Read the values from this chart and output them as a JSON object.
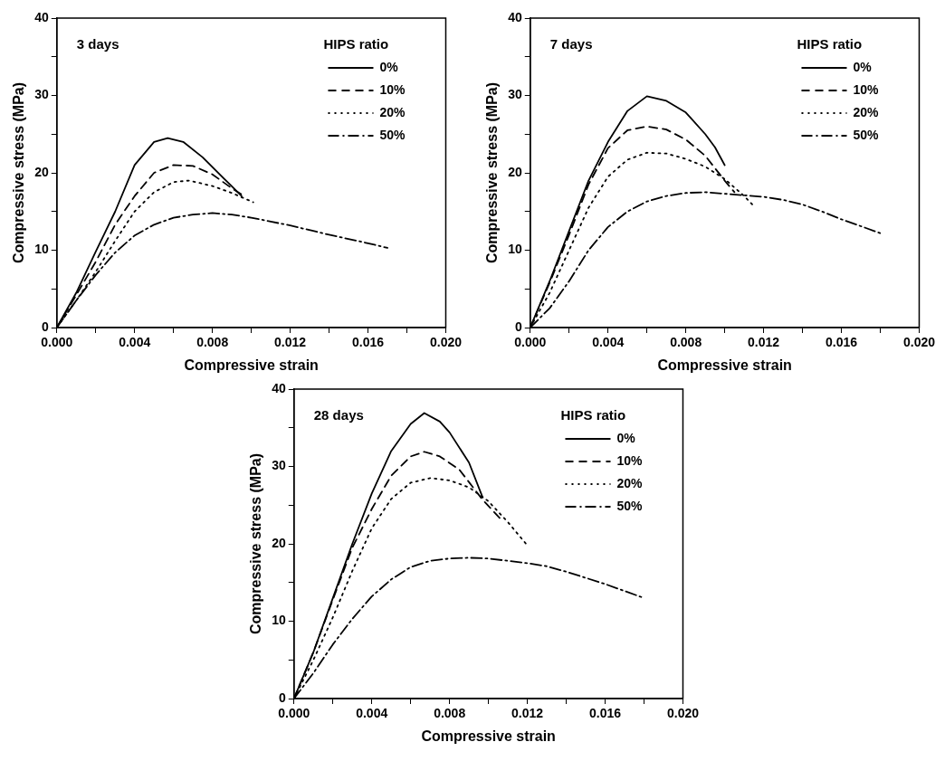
{
  "chart_data": [
    {
      "type": "line",
      "xlabel": "Compressive strain",
      "ylabel": "Compressive stress (MPa)",
      "legend_title": "HIPS ratio",
      "legend": "top right",
      "grid": false,
      "annotations": [
        "3 days"
      ],
      "xlim": [
        0,
        0.02
      ],
      "ylim": [
        0,
        40
      ],
      "xticks": [
        {
          "value": 0,
          "label": "0.000"
        },
        {
          "value": 0.002,
          "label": null
        },
        {
          "value": 0.004,
          "label": "0.004"
        },
        {
          "value": 0.006,
          "label": null
        },
        {
          "value": 0.008,
          "label": "0.008"
        },
        {
          "value": 0.01,
          "label": null
        },
        {
          "value": 0.012,
          "label": "0.012"
        },
        {
          "value": 0.014,
          "label": null
        },
        {
          "value": 0.016,
          "label": "0.016"
        },
        {
          "value": 0.018,
          "label": null
        },
        {
          "value": 0.02,
          "label": "0.020"
        }
      ],
      "yticks": [
        0,
        {
          "value": 5,
          "label": null
        },
        10,
        {
          "value": 15,
          "label": null
        },
        20,
        {
          "value": 25,
          "label": null
        },
        30,
        {
          "value": 35,
          "label": null
        },
        40
      ],
      "series": [
        {
          "name": "0%",
          "color": "#000000",
          "line_style": "solid",
          "x": [
            0,
            0.001,
            0.002,
            0.003,
            0.004,
            0.005,
            0.0057,
            0.0065,
            0.0075,
            0.0085,
            0.0095
          ],
          "values": [
            0,
            4.5,
            9.8,
            15,
            21,
            24,
            24.5,
            24,
            22,
            19.5,
            17
          ]
        },
        {
          "name": "10%",
          "color": "#000000",
          "line_style": "dashed",
          "x": [
            0,
            0.001,
            0.002,
            0.003,
            0.004,
            0.005,
            0.006,
            0.007,
            0.008,
            0.009,
            0.0097
          ],
          "values": [
            0,
            4.2,
            8.5,
            13.3,
            17,
            20,
            21,
            20.9,
            19.8,
            18,
            16.9
          ]
        },
        {
          "name": "20%",
          "color": "#000000",
          "line_style": "dotted",
          "x": [
            0,
            0.001,
            0.002,
            0.003,
            0.004,
            0.005,
            0.006,
            0.0068,
            0.008,
            0.009,
            0.0101
          ],
          "values": [
            0,
            3.5,
            7.2,
            11.2,
            15,
            17.5,
            18.8,
            19,
            18.3,
            17.4,
            16.2
          ]
        },
        {
          "name": "50%",
          "color": "#000000",
          "line_style": "dashdot",
          "x": [
            0,
            0.001,
            0.002,
            0.003,
            0.004,
            0.005,
            0.006,
            0.007,
            0.008,
            0.009,
            0.01,
            0.011,
            0.012,
            0.014,
            0.016,
            0.017
          ],
          "values": [
            0,
            3.5,
            6.8,
            9.7,
            11.9,
            13.3,
            14.2,
            14.6,
            14.8,
            14.6,
            14.2,
            13.7,
            13.2,
            12,
            10.9,
            10.3
          ]
        }
      ]
    },
    {
      "type": "line",
      "xlabel": "Compressive strain",
      "ylabel": "Compressive stress (MPa)",
      "legend_title": "HIPS ratio",
      "legend": "top right",
      "grid": false,
      "annotations": [
        "7 days"
      ],
      "xlim": [
        0,
        0.02
      ],
      "ylim": [
        0,
        40
      ],
      "xticks": [
        {
          "value": 0,
          "label": "0.000"
        },
        {
          "value": 0.002,
          "label": null
        },
        {
          "value": 0.004,
          "label": "0.004"
        },
        {
          "value": 0.006,
          "label": null
        },
        {
          "value": 0.008,
          "label": "0.008"
        },
        {
          "value": 0.01,
          "label": null
        },
        {
          "value": 0.012,
          "label": "0.012"
        },
        {
          "value": 0.014,
          "label": null
        },
        {
          "value": 0.016,
          "label": "0.016"
        },
        {
          "value": 0.018,
          "label": null
        },
        {
          "value": 0.02,
          "label": "0.020"
        }
      ],
      "yticks": [
        0,
        {
          "value": 5,
          "label": null
        },
        10,
        {
          "value": 15,
          "label": null
        },
        20,
        {
          "value": 25,
          "label": null
        },
        30,
        {
          "value": 35,
          "label": null
        },
        40
      ],
      "series": [
        {
          "name": "0%",
          "color": "#000000",
          "line_style": "solid",
          "x": [
            0,
            0.001,
            0.002,
            0.003,
            0.004,
            0.005,
            0.006,
            0.007,
            0.008,
            0.009,
            0.0095,
            0.01
          ],
          "values": [
            0,
            6,
            12.5,
            19,
            24,
            28,
            29.9,
            29.3,
            27.8,
            25,
            23.3,
            21
          ]
        },
        {
          "name": "10%",
          "color": "#000000",
          "line_style": "dashed",
          "x": [
            0,
            0.001,
            0.002,
            0.003,
            0.004,
            0.005,
            0.006,
            0.007,
            0.008,
            0.009,
            0.01,
            0.0105
          ],
          "values": [
            0,
            5.8,
            12,
            18.5,
            23.2,
            25.5,
            26,
            25.6,
            24.3,
            22.2,
            19,
            17.5
          ]
        },
        {
          "name": "20%",
          "color": "#000000",
          "line_style": "dotted",
          "x": [
            0,
            0.001,
            0.002,
            0.003,
            0.004,
            0.005,
            0.006,
            0.007,
            0.008,
            0.009,
            0.01,
            0.011,
            0.0115
          ],
          "values": [
            0,
            4.5,
            10,
            15.5,
            19.5,
            21.7,
            22.6,
            22.5,
            21.8,
            20.8,
            19.2,
            17,
            15.7
          ]
        },
        {
          "name": "50%",
          "color": "#000000",
          "line_style": "dashdot",
          "x": [
            0,
            0.001,
            0.002,
            0.003,
            0.004,
            0.005,
            0.006,
            0.007,
            0.008,
            0.009,
            0.01,
            0.011,
            0.012,
            0.013,
            0.014,
            0.015,
            0.016,
            0.017,
            0.018
          ],
          "values": [
            0,
            2.5,
            6,
            10,
            13,
            15,
            16.3,
            17,
            17.4,
            17.5,
            17.3,
            17.1,
            16.9,
            16.5,
            15.9,
            15,
            14,
            13.1,
            12.2
          ]
        }
      ]
    },
    {
      "type": "line",
      "xlabel": "Compressive strain",
      "ylabel": "Compressive stress (MPa)",
      "legend_title": "HIPS ratio",
      "legend": "top right",
      "grid": false,
      "annotations": [
        "28 days"
      ],
      "xlim": [
        0,
        0.02
      ],
      "ylim": [
        0,
        40
      ],
      "xticks": [
        {
          "value": 0,
          "label": "0.000"
        },
        {
          "value": 0.002,
          "label": null
        },
        {
          "value": 0.004,
          "label": "0.004"
        },
        {
          "value": 0.006,
          "label": null
        },
        {
          "value": 0.008,
          "label": "0.008"
        },
        {
          "value": 0.01,
          "label": null
        },
        {
          "value": 0.012,
          "label": "0.012"
        },
        {
          "value": 0.014,
          "label": null
        },
        {
          "value": 0.016,
          "label": "0.016"
        },
        {
          "value": 0.018,
          "label": null
        },
        {
          "value": 0.02,
          "label": "0.020"
        }
      ],
      "yticks": [
        0,
        {
          "value": 5,
          "label": null
        },
        10,
        {
          "value": 15,
          "label": null
        },
        20,
        {
          "value": 25,
          "label": null
        },
        30,
        {
          "value": 35,
          "label": null
        },
        40
      ],
      "series": [
        {
          "name": "0%",
          "color": "#000000",
          "line_style": "solid",
          "x": [
            0,
            0.001,
            0.002,
            0.003,
            0.004,
            0.005,
            0.006,
            0.0067,
            0.0075,
            0.008,
            0.009,
            0.0097
          ],
          "values": [
            0,
            6,
            13,
            20,
            26.5,
            32,
            35.5,
            36.9,
            35.8,
            34.4,
            30.5,
            26
          ]
        },
        {
          "name": "10%",
          "color": "#000000",
          "line_style": "dashed",
          "x": [
            0,
            0.001,
            0.002,
            0.003,
            0.004,
            0.005,
            0.006,
            0.0067,
            0.0075,
            0.0085,
            0.0097,
            0.0107
          ],
          "values": [
            0,
            6,
            12.8,
            19.5,
            24.5,
            28.8,
            31.3,
            31.9,
            31.3,
            29.6,
            25.7,
            23
          ]
        },
        {
          "name": "20%",
          "color": "#000000",
          "line_style": "dotted",
          "x": [
            0,
            0.001,
            0.002,
            0.003,
            0.004,
            0.005,
            0.006,
            0.007,
            0.008,
            0.009,
            0.01,
            0.011,
            0.012
          ],
          "values": [
            0,
            5,
            10.5,
            16.5,
            22,
            25.8,
            27.9,
            28.5,
            28.2,
            27.3,
            25.5,
            22.8,
            19.8
          ]
        },
        {
          "name": "50%",
          "color": "#000000",
          "line_style": "dashdot",
          "x": [
            0,
            0.001,
            0.002,
            0.003,
            0.004,
            0.005,
            0.006,
            0.007,
            0.008,
            0.009,
            0.01,
            0.011,
            0.012,
            0.013,
            0.014,
            0.015,
            0.016,
            0.017,
            0.018
          ],
          "values": [
            0,
            3.3,
            7,
            10.3,
            13.2,
            15.4,
            17,
            17.8,
            18.1,
            18.2,
            18.1,
            17.8,
            17.5,
            17.1,
            16.4,
            15.6,
            14.8,
            13.9,
            13
          ]
        }
      ]
    }
  ]
}
